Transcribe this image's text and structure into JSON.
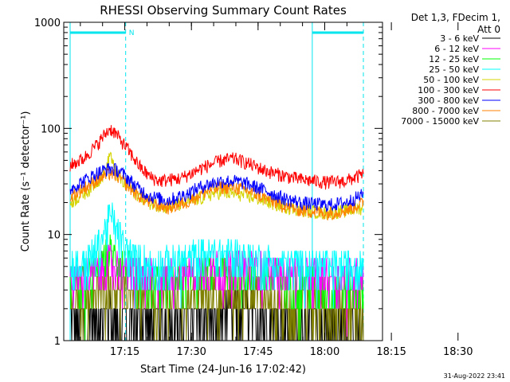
{
  "chart_data": {
    "type": "line",
    "title": "RHESSI Observing Summary Count Rates",
    "xlabel": "Start Time (24-Jun-16 17:02:42)",
    "ylabel": "Count Rate (s⁻¹ detector⁻¹)",
    "y_scale": "log",
    "ylim": [
      1,
      1000
    ],
    "x_range_min_from_start": [
      0,
      66
    ],
    "x_tick_labels": [
      "17:15",
      "17:30",
      "17:45",
      "18:00",
      "18:15",
      "18:30"
    ],
    "y_tick_labels": [
      "1",
      "10",
      "100",
      "1000"
    ],
    "legend_header": [
      "Det 1,3, FDecim 1,",
      "Att 0"
    ],
    "legend_position": "right",
    "footer_date": "31-Aug-2022 23:41",
    "annotations": [
      {
        "text": "N",
        "kind": "night",
        "start_min": 0,
        "end_min": 12.5
      },
      {
        "text": "",
        "kind": "night",
        "start_min": 54.5,
        "end_min": 66
      }
    ],
    "series": [
      {
        "name": "3 - 6 keV",
        "color": "#000000",
        "band": "low",
        "points": [
          [
            0,
            1.5
          ],
          [
            6,
            1.6
          ],
          [
            9,
            2.0
          ],
          [
            12,
            1.6
          ],
          [
            18,
            1.5
          ],
          [
            30,
            1.8
          ],
          [
            40,
            1.9
          ],
          [
            50,
            1.5
          ],
          [
            60,
            1.4
          ],
          [
            66,
            1.4
          ]
        ]
      },
      {
        "name": "6 - 12 keV",
        "color": "#ff00ff",
        "band": "low",
        "points": [
          [
            0,
            3.8
          ],
          [
            6,
            4.3
          ],
          [
            9,
            5.5
          ],
          [
            12,
            4.6
          ],
          [
            18,
            3.9
          ],
          [
            30,
            4.8
          ],
          [
            40,
            5.0
          ],
          [
            50,
            4.2
          ],
          [
            60,
            4.1
          ],
          [
            66,
            4.2
          ]
        ]
      },
      {
        "name": "12 - 25 keV",
        "color": "#00ff00",
        "band": "low",
        "points": [
          [
            0,
            3.5
          ],
          [
            6,
            4.5
          ],
          [
            9,
            7.0
          ],
          [
            12,
            5.0
          ],
          [
            18,
            3.4
          ],
          [
            30,
            4.5
          ],
          [
            40,
            4.6
          ],
          [
            50,
            3.5
          ],
          [
            60,
            3.2
          ],
          [
            66,
            3.3
          ]
        ]
      },
      {
        "name": "25 - 50 keV",
        "color": "#00ffff",
        "band": "low",
        "points": [
          [
            0,
            5.0
          ],
          [
            4,
            5.5
          ],
          [
            7,
            9
          ],
          [
            9,
            15
          ],
          [
            10,
            13
          ],
          [
            12,
            7.5
          ],
          [
            14,
            6.0
          ],
          [
            18,
            5.2
          ],
          [
            25,
            5.5
          ],
          [
            30,
            6.5
          ],
          [
            35,
            6.6
          ],
          [
            40,
            6.0
          ],
          [
            50,
            5.2
          ],
          [
            60,
            5.0
          ],
          [
            66,
            5.5
          ]
        ]
      },
      {
        "name": "50 - 100 keV",
        "color": "#d4d400",
        "band": "main",
        "points": [
          [
            0,
            20
          ],
          [
            4,
            26
          ],
          [
            7,
            35
          ],
          [
            8,
            38
          ],
          [
            9,
            60
          ],
          [
            10,
            40
          ],
          [
            12,
            30
          ],
          [
            14,
            26
          ],
          [
            18,
            20
          ],
          [
            22,
            18
          ],
          [
            28,
            21
          ],
          [
            33,
            25
          ],
          [
            38,
            24
          ],
          [
            42,
            22
          ],
          [
            47,
            19
          ],
          [
            52,
            17
          ],
          [
            58,
            16
          ],
          [
            63,
            17
          ],
          [
            66,
            18
          ]
        ]
      },
      {
        "name": "100 - 300 keV",
        "color": "#ff0000",
        "band": "main",
        "points": [
          [
            0,
            45
          ],
          [
            3,
            52
          ],
          [
            6,
            70
          ],
          [
            8,
            90
          ],
          [
            9,
            100
          ],
          [
            10,
            92
          ],
          [
            12,
            72
          ],
          [
            14,
            55
          ],
          [
            16,
            42
          ],
          [
            18,
            35
          ],
          [
            20,
            32
          ],
          [
            25,
            34
          ],
          [
            30,
            43
          ],
          [
            34,
            50
          ],
          [
            37,
            52
          ],
          [
            40,
            47
          ],
          [
            44,
            40
          ],
          [
            48,
            36
          ],
          [
            52,
            33
          ],
          [
            58,
            31
          ],
          [
            62,
            32
          ],
          [
            66,
            37
          ]
        ]
      },
      {
        "name": "300 - 800 keV",
        "color": "#0000ff",
        "band": "main",
        "points": [
          [
            0,
            27
          ],
          [
            3,
            32
          ],
          [
            6,
            38
          ],
          [
            8,
            41
          ],
          [
            9,
            42
          ],
          [
            11,
            40
          ],
          [
            13,
            34
          ],
          [
            15,
            28
          ],
          [
            18,
            23
          ],
          [
            22,
            21
          ],
          [
            26,
            24
          ],
          [
            30,
            29
          ],
          [
            34,
            32
          ],
          [
            37,
            32
          ],
          [
            40,
            30
          ],
          [
            44,
            26
          ],
          [
            48,
            22
          ],
          [
            52,
            20
          ],
          [
            58,
            19
          ],
          [
            62,
            20
          ],
          [
            66,
            24
          ]
        ]
      },
      {
        "name": "800 - 7000 keV",
        "color": "#ff8000",
        "band": "main",
        "points": [
          [
            0,
            23
          ],
          [
            3,
            27
          ],
          [
            6,
            33
          ],
          [
            8,
            36
          ],
          [
            9,
            38
          ],
          [
            11,
            35
          ],
          [
            13,
            29
          ],
          [
            15,
            24
          ],
          [
            18,
            20
          ],
          [
            22,
            18
          ],
          [
            26,
            20
          ],
          [
            30,
            25
          ],
          [
            34,
            28
          ],
          [
            37,
            28
          ],
          [
            40,
            26
          ],
          [
            44,
            22
          ],
          [
            48,
            19
          ],
          [
            52,
            17
          ],
          [
            58,
            16
          ],
          [
            62,
            17
          ],
          [
            66,
            20
          ]
        ]
      },
      {
        "name": "7000 - 15000 keV",
        "color": "#808000",
        "band": "low",
        "points": [
          [
            0,
            2.2
          ],
          [
            6,
            3.0
          ],
          [
            9,
            4.0
          ],
          [
            12,
            3.0
          ],
          [
            18,
            2.3
          ],
          [
            30,
            2.8
          ],
          [
            40,
            2.8
          ],
          [
            50,
            2.2
          ],
          [
            60,
            2.1
          ],
          [
            66,
            2.2
          ]
        ]
      }
    ]
  }
}
